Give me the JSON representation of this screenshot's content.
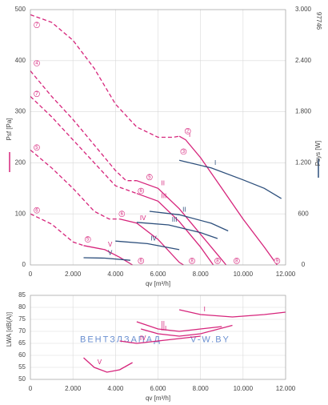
{
  "chart_data": [
    {
      "type": "line",
      "id_label": "97746",
      "xlabel": "qv [m³/h]",
      "ylabel": "Psf [Pa]",
      "y2label": "Psys [W]",
      "xlim": [
        0,
        12000
      ],
      "xticks": [
        0,
        {
          "value": 2000,
          "label": "2.000"
        },
        {
          "value": 4000,
          "label": "4.000"
        },
        {
          "value": 6000,
          "label": "6.000"
        },
        {
          "value": 8000,
          "label": "8.000"
        },
        {
          "value": 10000,
          "label": "10.000"
        },
        {
          "value": 12000,
          "label": "12.000"
        }
      ],
      "ylim": [
        0,
        500
      ],
      "yticks": [
        0,
        100,
        200,
        300,
        400,
        500
      ],
      "y2lim": [
        0,
        3000
      ],
      "y2ticks": [
        0,
        600,
        {
          "value": 1200,
          "label": "1.200"
        },
        {
          "value": 1800,
          "label": "1.800"
        },
        {
          "value": 2400,
          "label": "2.400"
        },
        {
          "value": 3000,
          "label": "3.000"
        }
      ],
      "grid": true,
      "series": [
        {
          "color": "#d6247b",
          "dashed": true,
          "x": [
            0,
            1000,
            2000,
            3000,
            4000,
            5000,
            6000,
            6700,
            7000
          ],
          "values": [
            490,
            475,
            440,
            385,
            315,
            270,
            250,
            250,
            252
          ]
        },
        {
          "name": "I",
          "color": "#d6247b",
          "x": [
            7000,
            7300,
            8000,
            9000,
            10000,
            11000,
            11600
          ],
          "values": [
            252,
            245,
            210,
            150,
            90,
            35,
            0
          ]
        },
        {
          "color": "#d6247b",
          "dashed": true,
          "x": [
            0,
            1000,
            2000,
            3000,
            4000,
            4500,
            5000
          ],
          "values": [
            380,
            330,
            285,
            235,
            185,
            165,
            165
          ]
        },
        {
          "name": "II",
          "color": "#d6247b",
          "x": [
            5000,
            6000,
            7000,
            8000,
            9000,
            9200
          ],
          "values": [
            165,
            150,
            110,
            60,
            10,
            0
          ]
        },
        {
          "color": "#d6247b",
          "dashed": true,
          "x": [
            0,
            1000,
            2000,
            3000,
            4000,
            5000
          ],
          "values": [
            330,
            290,
            245,
            200,
            155,
            140
          ]
        },
        {
          "name": "III",
          "color": "#d6247b",
          "x": [
            5000,
            6000,
            7000,
            8000,
            8600
          ],
          "values": [
            140,
            125,
            85,
            35,
            0
          ]
        },
        {
          "color": "#d6247b",
          "dashed": true,
          "x": [
            0,
            1000,
            2000,
            3000,
            3700,
            4200
          ],
          "values": [
            225,
            190,
            150,
            105,
            90,
            90
          ]
        },
        {
          "name": "IV",
          "color": "#d6247b",
          "x": [
            4200,
            5000,
            6000,
            7000,
            7200
          ],
          "values": [
            90,
            82,
            50,
            5,
            0
          ]
        },
        {
          "color": "#d6247b",
          "dashed": true,
          "x": [
            0,
            1000,
            2000,
            2500
          ],
          "values": [
            100,
            80,
            45,
            38
          ]
        },
        {
          "name": "V",
          "color": "#d6247b",
          "x": [
            2500,
            3500,
            4200,
            4800
          ],
          "values": [
            38,
            30,
            15,
            0
          ]
        },
        {
          "name": "I",
          "color": "#2d4f7c",
          "axis": "y2",
          "x": [
            7000,
            8500,
            10000,
            11000,
            11800
          ],
          "values": [
            1230,
            1140,
            1000,
            900,
            780
          ]
        },
        {
          "name": "II",
          "color": "#2d4f7c",
          "axis": "y2",
          "x": [
            5600,
            7000,
            8500,
            9300
          ],
          "values": [
            630,
            590,
            490,
            400
          ]
        },
        {
          "name": "III",
          "color": "#2d4f7c",
          "axis": "y2",
          "x": [
            5000,
            6500,
            8000,
            8800
          ],
          "values": [
            500,
            470,
            380,
            310
          ]
        },
        {
          "name": "IV",
          "color": "#2d4f7c",
          "axis": "y2",
          "x": [
            4000,
            5500,
            7000
          ],
          "values": [
            280,
            250,
            180
          ]
        },
        {
          "name": "V",
          "color": "#2d4f7c",
          "axis": "y2",
          "x": [
            2500,
            3500,
            4700
          ],
          "values": [
            85,
            80,
            55
          ]
        }
      ],
      "annotations": [
        {
          "text": "7",
          "x": 300,
          "y": 470
        },
        {
          "text": "4",
          "x": 300,
          "y": 395
        },
        {
          "text": "7",
          "x": 300,
          "y": 335
        },
        {
          "text": "5",
          "x": 300,
          "y": 230
        },
        {
          "text": "6",
          "x": 300,
          "y": 107
        },
        {
          "text": "2",
          "x": 7400,
          "y": 262
        },
        {
          "text": "3",
          "x": 7200,
          "y": 222
        },
        {
          "text": "5",
          "x": 5600,
          "y": 172
        },
        {
          "text": "6",
          "x": 5200,
          "y": 145
        },
        {
          "text": "6",
          "x": 4300,
          "y": 100
        },
        {
          "text": "5",
          "x": 2700,
          "y": 50
        },
        {
          "text": "6",
          "x": 5200,
          "y": 8
        },
        {
          "text": "8",
          "x": 7600,
          "y": 8
        },
        {
          "text": "8",
          "x": 8800,
          "y": 8
        },
        {
          "text": "8",
          "x": 9700,
          "y": 8
        },
        {
          "text": "9",
          "x": 11600,
          "y": 8
        }
      ]
    },
    {
      "type": "line",
      "xlabel": "qv [m³/h]",
      "ylabel": "LWA [dB(A)]",
      "xlim": [
        0,
        12000
      ],
      "xticks": [
        0,
        {
          "value": 2000,
          "label": "2.000"
        },
        {
          "value": 4000,
          "label": "4.000"
        },
        {
          "value": 6000,
          "label": "6.000"
        },
        {
          "value": 8000,
          "label": "8.000"
        },
        {
          "value": 10000,
          "label": "10.000"
        },
        {
          "value": 12000,
          "label": "12.000"
        }
      ],
      "ylim": [
        50,
        85
      ],
      "yticks": [
        50,
        55,
        60,
        65,
        70,
        75,
        80,
        85
      ],
      "grid": true,
      "watermark": "ВЕНТЗЛЗАПАД",
      "watermark2": "V-W.BY",
      "series": [
        {
          "name": "I",
          "color": "#d6247b",
          "x": [
            7000,
            8000,
            9500,
            11000,
            12000
          ],
          "values": [
            79,
            77,
            76,
            77,
            78
          ]
        },
        {
          "name": "II",
          "color": "#d6247b",
          "x": [
            5000,
            6000,
            7000,
            8000,
            9000
          ],
          "values": [
            74,
            71,
            70,
            71,
            72
          ]
        },
        {
          "name": "III",
          "color": "#d6247b",
          "x": [
            5200,
            6000,
            7000,
            8000,
            9500
          ],
          "values": [
            71,
            69,
            68,
            69,
            72.5
          ]
        },
        {
          "name": "IV",
          "color": "#d6247b",
          "x": [
            4200,
            5000,
            6000,
            7000,
            8000
          ],
          "values": [
            66,
            65,
            66,
            67,
            68
          ]
        },
        {
          "name": "V",
          "color": "#d6247b",
          "x": [
            2500,
            3000,
            3600,
            4200,
            4800
          ],
          "values": [
            59,
            55,
            53,
            54,
            57
          ]
        }
      ]
    }
  ]
}
